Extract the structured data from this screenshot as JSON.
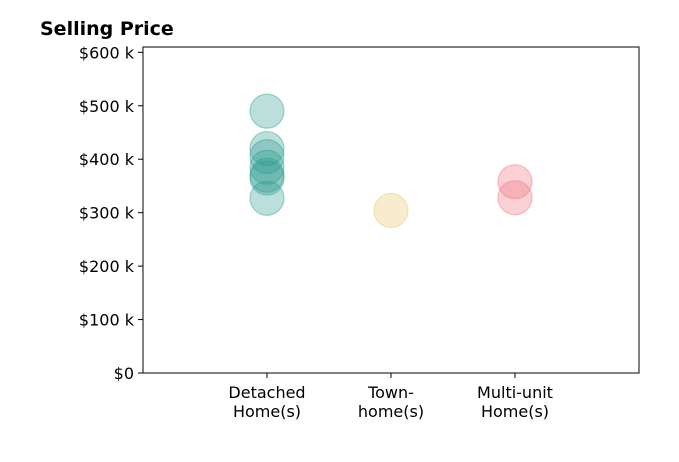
{
  "chart_data": {
    "type": "scatter",
    "title": "Selling Price",
    "xlabel": "",
    "ylabel": "",
    "categories": [
      [
        "Detached",
        "Home(s)"
      ],
      [
        "Town-",
        "home(s)"
      ],
      [
        "Multi-unit",
        "Home(s)"
      ]
    ],
    "ylim": [
      0,
      610000
    ],
    "yticks": [
      {
        "value": 0,
        "label": "$0"
      },
      {
        "value": 100000,
        "label": "$100 k"
      },
      {
        "value": 200000,
        "label": "$200 k"
      },
      {
        "value": 300000,
        "label": "$300 k"
      },
      {
        "value": 400000,
        "label": "$400 k"
      },
      {
        "value": 500000,
        "label": "$500 k"
      },
      {
        "value": 600000,
        "label": "$600 k"
      }
    ],
    "grid": false,
    "series": [
      {
        "category_index": 0,
        "color": "#2a9d8f",
        "values": [
          490000,
          420000,
          405000,
          385000,
          370000,
          365000,
          327000
        ]
      },
      {
        "category_index": 1,
        "color": "#e9c46a",
        "values": [
          304000
        ]
      },
      {
        "category_index": 2,
        "color": "#ef6f7b",
        "values": [
          358000,
          328000
        ]
      }
    ],
    "marker_opacity": 0.32
  }
}
